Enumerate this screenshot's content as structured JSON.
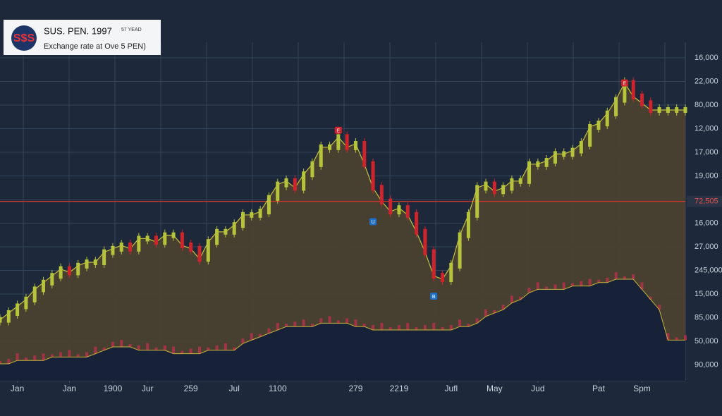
{
  "header": {
    "logo": "S$S",
    "title": "SUS. PEN. 1997",
    "title_note": "57 YEAD",
    "subtitle": "Exchange rate at Ove 5 PEN)"
  },
  "chart_data": {
    "type": "area-candles",
    "ylim": [
      0,
      100
    ],
    "xlim": [
      0,
      79
    ],
    "xticks": [
      {
        "value": 2,
        "label": "Jan"
      },
      {
        "value": 8,
        "label": "Jan"
      },
      {
        "value": 13,
        "label": "1900"
      },
      {
        "value": 17,
        "label": "Jur"
      },
      {
        "value": 22,
        "label": "259"
      },
      {
        "value": 27,
        "label": "Jul"
      },
      {
        "value": 32,
        "label": "1100"
      },
      {
        "value": 41,
        "label": "279"
      },
      {
        "value": 46,
        "label": "2219"
      },
      {
        "value": 52,
        "label": "Jufl"
      },
      {
        "value": 57,
        "label": "May"
      },
      {
        "value": 62,
        "label": "Jud"
      },
      {
        "value": 69,
        "label": "Pat"
      },
      {
        "value": 74,
        "label": "Spm"
      }
    ],
    "y_axis_labels": [
      "16,000",
      "22,000",
      "80,000",
      "12,000",
      "17,000",
      "19,000",
      "16,000",
      "27,000",
      "245,000",
      "15,000",
      "85,000",
      "50,000",
      "90,000"
    ],
    "reference_line": {
      "value": 53,
      "label": "72,505",
      "color": "#d0342c"
    },
    "series": [
      {
        "name": "Price",
        "color": "#c8c23a",
        "up_color": "#b5c43a",
        "down_color": "#d0242c",
        "fill": "#4a4130",
        "values": [
          18,
          20,
          22,
          24,
          27,
          29,
          31,
          33,
          32,
          34,
          35,
          35,
          38,
          39,
          40,
          39,
          42,
          42,
          41,
          43,
          43,
          40,
          39,
          36,
          41,
          44,
          44,
          46,
          49,
          49,
          50,
          54,
          58,
          59,
          57,
          61,
          64,
          69,
          69,
          72,
          69,
          70,
          64,
          57,
          53,
          50,
          51,
          49,
          44,
          38,
          31,
          30,
          34,
          43,
          49,
          57,
          58,
          56,
          57,
          59,
          59,
          64,
          64,
          65,
          67,
          67,
          68,
          70,
          75,
          76,
          79,
          83,
          88,
          84,
          82,
          80,
          80,
          80,
          80,
          80
        ]
      },
      {
        "name": "Volume",
        "color": "#c8b23a",
        "bar_color": "#b8304a",
        "fill": "#172238",
        "values": [
          5,
          5,
          6,
          6,
          6,
          6,
          7,
          7,
          7,
          7,
          7,
          8,
          9,
          10,
          10,
          10,
          9,
          9,
          9,
          9,
          8,
          8,
          8,
          8,
          9,
          9,
          9,
          9,
          11,
          12,
          13,
          14,
          15,
          16,
          16,
          16,
          16,
          17,
          17,
          17,
          17,
          16,
          16,
          15,
          15,
          15,
          15,
          15,
          15,
          15,
          15,
          15,
          15,
          16,
          16,
          17,
          19,
          20,
          21,
          23,
          24,
          26,
          27,
          27,
          27,
          27,
          28,
          28,
          28,
          29,
          29,
          30,
          30,
          30,
          27,
          24,
          21,
          12,
          12,
          12
        ]
      }
    ],
    "markers": [
      {
        "index": 39,
        "label": "E",
        "color": "#d0242c",
        "y": 74
      },
      {
        "index": 43,
        "label": "U",
        "color": "#1e6fc8",
        "y": 47
      },
      {
        "index": 50,
        "label": "B",
        "color": "#1e6fc8",
        "y": 25
      },
      {
        "index": 72,
        "label": "E",
        "color": "#d0242c",
        "y": 88
      }
    ]
  }
}
